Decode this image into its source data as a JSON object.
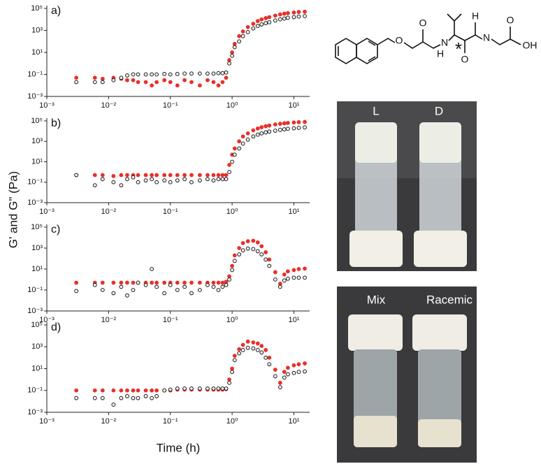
{
  "figure": {
    "y_label": "G' and G\" (Pa)",
    "x_label": "Time (h)"
  },
  "photos": {
    "top": [
      "L",
      "D"
    ],
    "bottom": [
      "Mix",
      "Racemic"
    ]
  },
  "structure": {
    "labels": [
      "O",
      "O",
      "N",
      "H",
      "*",
      "O",
      "N",
      "H",
      "O",
      "OH"
    ]
  },
  "chart_data": [
    {
      "type": "scatter",
      "panel_label": "a)",
      "log_x": true,
      "log_y": true,
      "xlim": [
        0.001,
        18
      ],
      "ylim": [
        0.001,
        100000
      ],
      "xticks": [
        {
          "value": 0.001,
          "label": "10⁻³"
        },
        {
          "value": 0.01,
          "label": "10⁻²"
        },
        {
          "value": 0.1,
          "label": "10⁻¹"
        },
        {
          "value": 1,
          "label": "10⁰"
        },
        {
          "value": 10,
          "label": "10¹"
        }
      ],
      "yticks": [
        {
          "value": 0.001,
          "label": "10⁻³"
        },
        {
          "value": 0.1,
          "label": "10⁻¹"
        },
        {
          "value": 10,
          "label": "10¹"
        },
        {
          "value": 1000,
          "label": "10³"
        },
        {
          "value": 100000,
          "label": "10⁵"
        }
      ],
      "x": [
        0.003,
        0.006,
        0.008,
        0.012,
        0.016,
        0.02,
        0.025,
        0.03,
        0.04,
        0.05,
        0.06,
        0.08,
        0.1,
        0.13,
        0.17,
        0.22,
        0.3,
        0.4,
        0.5,
        0.6,
        0.7,
        0.8,
        0.9,
        1.0,
        1.1,
        1.3,
        1.5,
        1.8,
        2.2,
        2.6,
        3,
        3.5,
        4,
        5,
        6,
        7,
        8,
        10,
        12,
        15
      ],
      "series": [
        {
          "color": "#e8302a",
          "filled": true,
          "values": [
            0.05,
            0.05,
            0.04,
            0.05,
            0.04,
            0.03,
            0.03,
            0.02,
            0.02,
            0.01,
            0.02,
            0.03,
            0.02,
            0.01,
            0.03,
            0.02,
            0.01,
            0.03,
            0.02,
            0.01,
            0.02,
            0.05,
            2,
            10,
            60,
            300,
            800,
            2000,
            4000,
            7000,
            10000,
            13000,
            16000,
            22000,
            28000,
            33000,
            37000,
            42000,
            47000,
            50000
          ]
        },
        {
          "color": "#111111",
          "filled": false,
          "values": [
            0.02,
            0.02,
            0.02,
            0.03,
            0.05,
            0.08,
            0.1,
            0.1,
            0.1,
            0.1,
            0.1,
            0.11,
            0.1,
            0.11,
            0.12,
            0.12,
            0.12,
            0.12,
            0.12,
            0.13,
            0.13,
            0.15,
            1,
            5,
            30,
            100,
            300,
            700,
            1500,
            2500,
            3500,
            4500,
            5500,
            8000,
            10000,
            12000,
            14000,
            16000,
            18000,
            20000
          ]
        }
      ]
    },
    {
      "type": "scatter",
      "panel_label": "b)",
      "log_x": true,
      "log_y": true,
      "xlim": [
        0.001,
        18
      ],
      "ylim": [
        0.001,
        100000
      ],
      "xticks": [
        {
          "value": 0.001,
          "label": "10⁻³"
        },
        {
          "value": 0.01,
          "label": "10⁻²"
        },
        {
          "value": 0.1,
          "label": "10⁻¹"
        },
        {
          "value": 1,
          "label": "10⁰"
        },
        {
          "value": 10,
          "label": "10¹"
        }
      ],
      "yticks": [
        {
          "value": 0.001,
          "label": "10⁻³"
        },
        {
          "value": 0.1,
          "label": "10⁻¹"
        },
        {
          "value": 10,
          "label": "10¹"
        },
        {
          "value": 1000,
          "label": "10³"
        },
        {
          "value": 100000,
          "label": "10⁵"
        }
      ],
      "x": [
        0.003,
        0.006,
        0.008,
        0.012,
        0.016,
        0.02,
        0.025,
        0.03,
        0.04,
        0.05,
        0.06,
        0.08,
        0.1,
        0.13,
        0.17,
        0.22,
        0.3,
        0.4,
        0.5,
        0.6,
        0.7,
        0.8,
        0.9,
        1.0,
        1.1,
        1.3,
        1.5,
        1.8,
        2.2,
        2.6,
        3,
        3.5,
        4,
        5,
        6,
        7,
        8,
        10,
        12,
        15
      ],
      "series": [
        {
          "color": "#e8302a",
          "filled": true,
          "values": [
            0.5,
            0.5,
            0.5,
            0.4,
            0.5,
            0.5,
            0.5,
            0.5,
            0.5,
            0.5,
            0.5,
            0.5,
            0.5,
            0.5,
            0.5,
            0.5,
            0.5,
            0.5,
            0.5,
            0.5,
            0.5,
            0.5,
            5,
            50,
            200,
            1000,
            3000,
            6000,
            12000,
            18000,
            24000,
            30000,
            35000,
            45000,
            52000,
            58000,
            63000,
            70000,
            75000,
            80000
          ]
        },
        {
          "color": "#111111",
          "filled": false,
          "values": [
            0.5,
            0.05,
            0.2,
            0.1,
            0.05,
            0.2,
            0.3,
            0.1,
            0.15,
            0.2,
            0.1,
            0.15,
            0.1,
            0.15,
            0.2,
            0.1,
            0.15,
            0.2,
            0.15,
            0.2,
            0.2,
            0.2,
            1,
            10,
            50,
            200,
            600,
            1500,
            3000,
            4500,
            6000,
            7500,
            9000,
            11000,
            13000,
            15000,
            17000,
            19000,
            21000,
            23000
          ]
        }
      ]
    },
    {
      "type": "scatter",
      "panel_label": "c)",
      "log_x": true,
      "log_y": true,
      "xlim": [
        0.001,
        18
      ],
      "ylim": [
        0.001,
        100000
      ],
      "xticks": [
        {
          "value": 0.001,
          "label": "10⁻³"
        },
        {
          "value": 0.01,
          "label": "10⁻²"
        },
        {
          "value": 0.1,
          "label": "10⁻¹"
        },
        {
          "value": 1,
          "label": "10⁰"
        },
        {
          "value": 10,
          "label": "10¹"
        }
      ],
      "yticks": [
        {
          "value": 0.001,
          "label": "10⁻³"
        },
        {
          "value": 0.1,
          "label": "10⁻¹"
        },
        {
          "value": 10,
          "label": "10¹"
        },
        {
          "value": 1000,
          "label": "10³"
        },
        {
          "value": 100000,
          "label": "10⁵"
        }
      ],
      "x": [
        0.003,
        0.006,
        0.008,
        0.012,
        0.016,
        0.02,
        0.025,
        0.03,
        0.04,
        0.05,
        0.06,
        0.08,
        0.1,
        0.13,
        0.17,
        0.22,
        0.3,
        0.4,
        0.5,
        0.6,
        0.7,
        0.8,
        0.9,
        1.0,
        1.1,
        1.3,
        1.5,
        1.8,
        2.2,
        2.6,
        3,
        3.5,
        4,
        5,
        6,
        7,
        8,
        10,
        12,
        15
      ],
      "series": [
        {
          "color": "#e8302a",
          "filled": true,
          "values": [
            0.5,
            0.5,
            0.5,
            0.5,
            0.5,
            0.5,
            0.5,
            0.5,
            0.5,
            0.5,
            0.5,
            0.5,
            0.5,
            0.5,
            0.5,
            0.5,
            0.5,
            0.5,
            0.5,
            0.5,
            0.5,
            0.6,
            2,
            20,
            200,
            1000,
            3000,
            4500,
            5000,
            3500,
            1500,
            400,
            80,
            5,
            0.4,
            3,
            6,
            8,
            10,
            11
          ]
        },
        {
          "color": "#111111",
          "filled": false,
          "values": [
            0.08,
            0.3,
            0.1,
            0.05,
            0.2,
            0.03,
            0.1,
            0.5,
            0.3,
            10,
            0.2,
            0.05,
            0.3,
            0.1,
            0.2,
            0.05,
            0.1,
            0.3,
            0.2,
            0.1,
            0.2,
            0.3,
            1,
            8,
            60,
            250,
            600,
            900,
            800,
            500,
            250,
            80,
            20,
            1,
            0.2,
            0.8,
            1.2,
            1.5,
            1.5,
            1.5
          ]
        }
      ]
    },
    {
      "type": "scatter",
      "panel_label": "d)",
      "log_x": true,
      "log_y": true,
      "xlim": [
        0.001,
        18
      ],
      "ylim": [
        0.001,
        100000
      ],
      "xticks": [
        {
          "value": 0.001,
          "label": "10⁻³"
        },
        {
          "value": 0.01,
          "label": "10⁻²"
        },
        {
          "value": 0.1,
          "label": "10⁻¹"
        },
        {
          "value": 1,
          "label": "10⁰"
        },
        {
          "value": 10,
          "label": "10¹"
        }
      ],
      "yticks": [
        {
          "value": 0.001,
          "label": "10⁻³"
        },
        {
          "value": 0.1,
          "label": "10⁻¹"
        },
        {
          "value": 10,
          "label": "10¹"
        },
        {
          "value": 1000,
          "label": "10³"
        },
        {
          "value": 100000,
          "label": "10⁵"
        }
      ],
      "x": [
        0.003,
        0.006,
        0.008,
        0.012,
        0.016,
        0.02,
        0.025,
        0.03,
        0.04,
        0.05,
        0.06,
        0.08,
        0.1,
        0.13,
        0.17,
        0.22,
        0.3,
        0.4,
        0.5,
        0.6,
        0.7,
        0.8,
        0.9,
        1.0,
        1.1,
        1.3,
        1.5,
        1.8,
        2.2,
        2.6,
        3,
        3.5,
        4,
        5,
        6,
        7,
        8,
        10,
        12,
        15
      ],
      "series": [
        {
          "color": "#e8302a",
          "filled": true,
          "values": [
            0.1,
            0.1,
            0.1,
            0.1,
            0.1,
            0.1,
            0.1,
            0.1,
            0.1,
            0.1,
            0.1,
            0.1,
            0.1,
            0.12,
            0.12,
            0.12,
            0.12,
            0.12,
            0.12,
            0.12,
            0.12,
            0.13,
            1,
            10,
            150,
            600,
            1500,
            3000,
            2500,
            2000,
            1200,
            500,
            100,
            8,
            0.5,
            5,
            12,
            20,
            25,
            30
          ]
        },
        {
          "color": "#111111",
          "filled": false,
          "values": [
            0.02,
            0.02,
            0.02,
            0.005,
            0.02,
            0.03,
            0.02,
            0.02,
            0.03,
            0.02,
            0.03,
            0.1,
            0.12,
            0.15,
            0.15,
            0.15,
            0.15,
            0.15,
            0.15,
            0.15,
            0.15,
            0.15,
            0.5,
            5,
            60,
            250,
            500,
            800,
            700,
            500,
            300,
            100,
            25,
            2,
            0.2,
            1.5,
            3,
            4,
            5,
            5.5
          ]
        }
      ]
    }
  ]
}
